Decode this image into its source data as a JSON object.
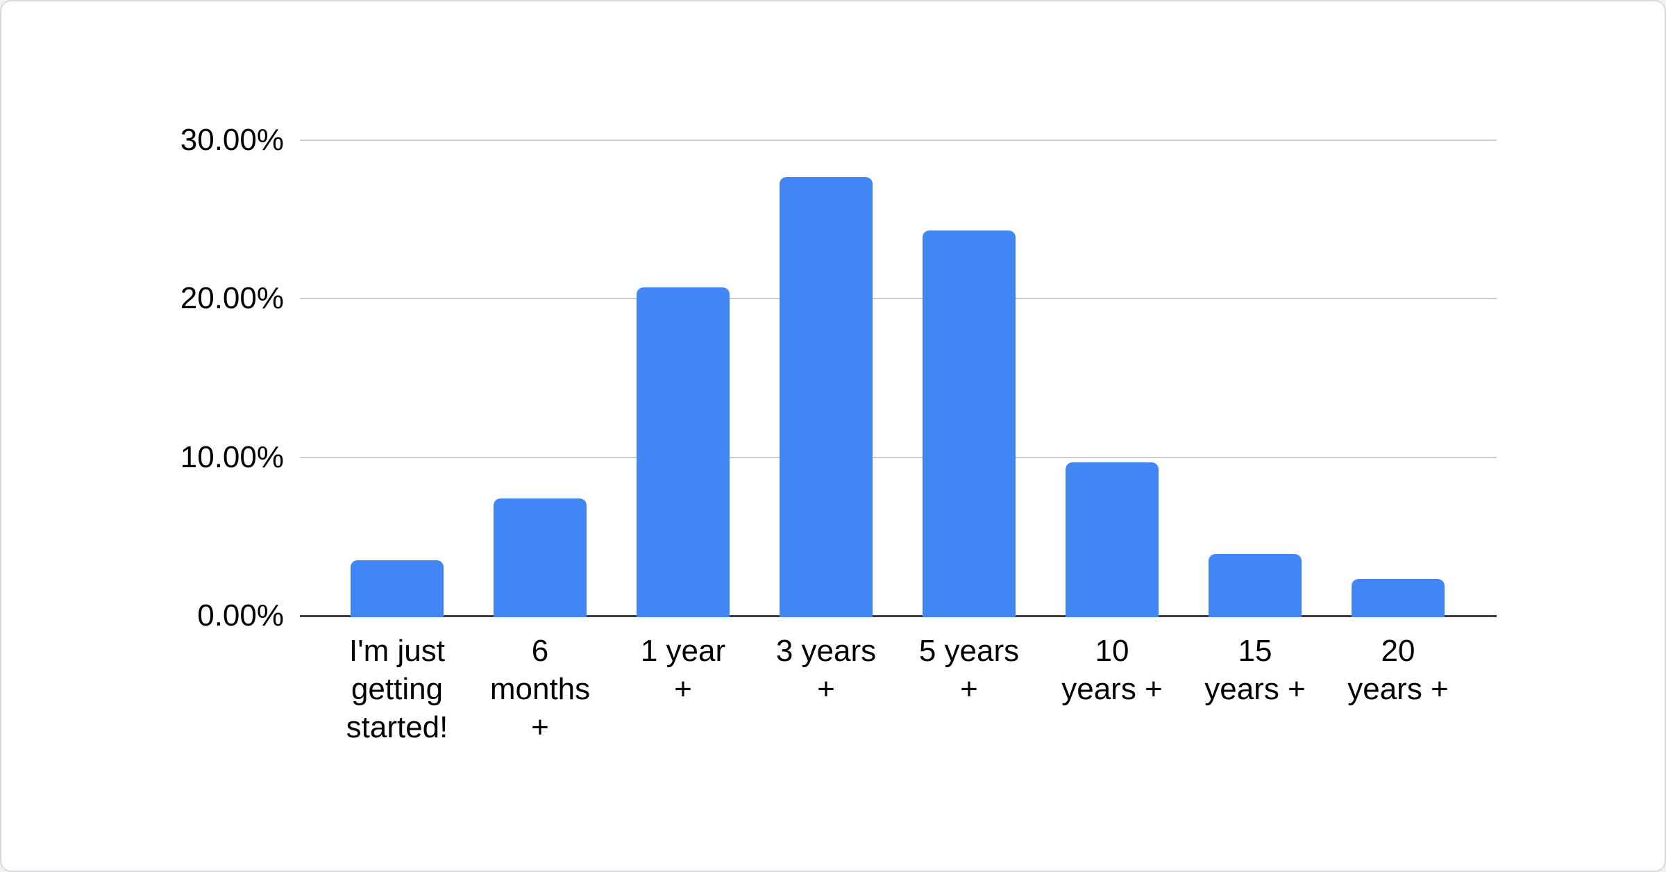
{
  "chart_data": {
    "type": "bar",
    "title": "",
    "xlabel": "",
    "ylabel": "",
    "categories": [
      "I'm just getting started!",
      "6 months +",
      "1 year +",
      "3 years +",
      "5 years +",
      "10 years +",
      "15 years +",
      "20 years +"
    ],
    "category_lines": [
      [
        "I'm just",
        "getting",
        "started!"
      ],
      [
        "6",
        "months",
        "+"
      ],
      [
        "1 year",
        "+"
      ],
      [
        "3 years",
        "+"
      ],
      [
        "5 years",
        "+"
      ],
      [
        "10",
        "years +"
      ],
      [
        "15",
        "years +"
      ],
      [
        "20",
        "years +"
      ]
    ],
    "values": [
      3.5,
      7.4,
      20.7,
      27.7,
      24.3,
      9.7,
      3.9,
      2.3
    ],
    "unit": "%",
    "ylim": [
      0,
      30
    ],
    "yticks": [
      {
        "value": 0,
        "label": "0.00%"
      },
      {
        "value": 10,
        "label": "10.00%"
      },
      {
        "value": 20,
        "label": "20.00%"
      },
      {
        "value": 30,
        "label": "30.00%"
      }
    ],
    "grid": true,
    "legend_position": "none",
    "bar_color": "#4285f4",
    "gridline_color": "#cccccc",
    "axis_line_color": "#3c3c3c",
    "text_color": "#000000",
    "card_background": "#ffffff",
    "card_border_color": "#d8dadd"
  }
}
